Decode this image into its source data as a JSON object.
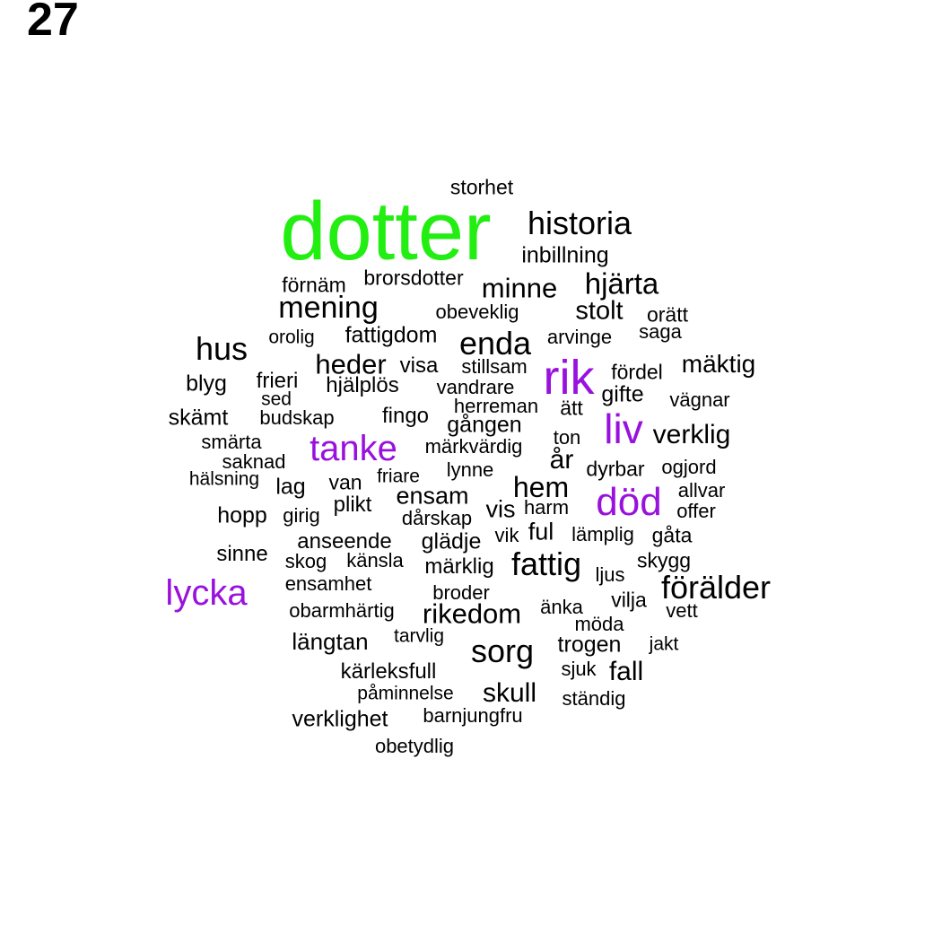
{
  "page_number": "27",
  "colors": {
    "highlight": "#22ee11",
    "accent": "#9911dd",
    "default": "#000000"
  },
  "words": [
    {
      "text": "dotter",
      "color": "highlight"
    },
    {
      "text": "storhet",
      "color": "default"
    },
    {
      "text": "historia",
      "color": "default"
    },
    {
      "text": "inbillning",
      "color": "default"
    },
    {
      "text": "brorsdotter",
      "color": "default"
    },
    {
      "text": "förnäm",
      "color": "default"
    },
    {
      "text": "minne",
      "color": "default"
    },
    {
      "text": "hjärta",
      "color": "default"
    },
    {
      "text": "mening",
      "color": "default"
    },
    {
      "text": "obeveklig",
      "color": "default"
    },
    {
      "text": "stolt",
      "color": "default"
    },
    {
      "text": "orätt",
      "color": "default"
    },
    {
      "text": "orolig",
      "color": "default"
    },
    {
      "text": "fattigdom",
      "color": "default"
    },
    {
      "text": "enda",
      "color": "default"
    },
    {
      "text": "arvinge",
      "color": "default"
    },
    {
      "text": "saga",
      "color": "default"
    },
    {
      "text": "hus",
      "color": "default"
    },
    {
      "text": "heder",
      "color": "default"
    },
    {
      "text": "visa",
      "color": "default"
    },
    {
      "text": "stillsam",
      "color": "default"
    },
    {
      "text": "rik",
      "color": "accent"
    },
    {
      "text": "fördel",
      "color": "default"
    },
    {
      "text": "mäktig",
      "color": "default"
    },
    {
      "text": "blyg",
      "color": "default"
    },
    {
      "text": "frieri",
      "color": "default"
    },
    {
      "text": "hjälplös",
      "color": "default"
    },
    {
      "text": "vandrare",
      "color": "default"
    },
    {
      "text": "gifte",
      "color": "default"
    },
    {
      "text": "sed",
      "color": "default"
    },
    {
      "text": "vägnar",
      "color": "default"
    },
    {
      "text": "herreman",
      "color": "default"
    },
    {
      "text": "ätt",
      "color": "default"
    },
    {
      "text": "skämt",
      "color": "default"
    },
    {
      "text": "budskap",
      "color": "default"
    },
    {
      "text": "fingo",
      "color": "default"
    },
    {
      "text": "gången",
      "color": "default"
    },
    {
      "text": "liv",
      "color": "accent"
    },
    {
      "text": "smärta",
      "color": "default"
    },
    {
      "text": "tanke",
      "color": "accent"
    },
    {
      "text": "märkvärdig",
      "color": "default"
    },
    {
      "text": "ton",
      "color": "default"
    },
    {
      "text": "verklig",
      "color": "default"
    },
    {
      "text": "saknad",
      "color": "default"
    },
    {
      "text": "år",
      "color": "default"
    },
    {
      "text": "dyrbar",
      "color": "default"
    },
    {
      "text": "ogjord",
      "color": "default"
    },
    {
      "text": "hälsning",
      "color": "default"
    },
    {
      "text": "lag",
      "color": "default"
    },
    {
      "text": "van",
      "color": "default"
    },
    {
      "text": "friare",
      "color": "default"
    },
    {
      "text": "lynne",
      "color": "default"
    },
    {
      "text": "ensam",
      "color": "default"
    },
    {
      "text": "hem",
      "color": "default"
    },
    {
      "text": "död",
      "color": "accent"
    },
    {
      "text": "allvar",
      "color": "default"
    },
    {
      "text": "hopp",
      "color": "default"
    },
    {
      "text": "girig",
      "color": "default"
    },
    {
      "text": "plikt",
      "color": "default"
    },
    {
      "text": "vis",
      "color": "default"
    },
    {
      "text": "harm",
      "color": "default"
    },
    {
      "text": "offer",
      "color": "default"
    },
    {
      "text": "dårskap",
      "color": "default"
    },
    {
      "text": "anseende",
      "color": "default"
    },
    {
      "text": "glädje",
      "color": "default"
    },
    {
      "text": "vik",
      "color": "default"
    },
    {
      "text": "ful",
      "color": "default"
    },
    {
      "text": "lämplig",
      "color": "default"
    },
    {
      "text": "gåta",
      "color": "default"
    },
    {
      "text": "sinne",
      "color": "default"
    },
    {
      "text": "skog",
      "color": "default"
    },
    {
      "text": "känsla",
      "color": "default"
    },
    {
      "text": "märklig",
      "color": "default"
    },
    {
      "text": "fattig",
      "color": "default"
    },
    {
      "text": "skygg",
      "color": "default"
    },
    {
      "text": "ljus",
      "color": "default"
    },
    {
      "text": "lycka",
      "color": "accent"
    },
    {
      "text": "ensamhet",
      "color": "default"
    },
    {
      "text": "broder",
      "color": "default"
    },
    {
      "text": "förälder",
      "color": "default"
    },
    {
      "text": "obarmhärtig",
      "color": "default"
    },
    {
      "text": "rikedom",
      "color": "default"
    },
    {
      "text": "änka",
      "color": "default"
    },
    {
      "text": "vilja",
      "color": "default"
    },
    {
      "text": "vett",
      "color": "default"
    },
    {
      "text": "möda",
      "color": "default"
    },
    {
      "text": "längtan",
      "color": "default"
    },
    {
      "text": "tarvlig",
      "color": "default"
    },
    {
      "text": "sorg",
      "color": "default"
    },
    {
      "text": "trogen",
      "color": "default"
    },
    {
      "text": "jakt",
      "color": "default"
    },
    {
      "text": "kärleksfull",
      "color": "default"
    },
    {
      "text": "sjuk",
      "color": "default"
    },
    {
      "text": "fall",
      "color": "default"
    },
    {
      "text": "påminnelse",
      "color": "default"
    },
    {
      "text": "skull",
      "color": "default"
    },
    {
      "text": "ständig",
      "color": "default"
    },
    {
      "text": "verklighet",
      "color": "default"
    },
    {
      "text": "barnjungfru",
      "color": "default"
    },
    {
      "text": "obetydlig",
      "color": "default"
    }
  ]
}
